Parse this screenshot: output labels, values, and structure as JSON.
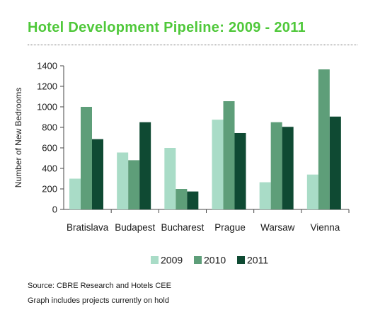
{
  "title": "Hotel Development Pipeline: 2009 - 2011",
  "chart_data": {
    "type": "bar",
    "categories": [
      "Bratislava",
      "Budapest",
      "Bucharest",
      "Prague",
      "Warsaw",
      "Vienna"
    ],
    "series": [
      {
        "name": "2009",
        "values": [
          300,
          555,
          600,
          875,
          265,
          340
        ],
        "color": "#a9dcc7"
      },
      {
        "name": "2010",
        "values": [
          1000,
          480,
          200,
          1055,
          850,
          1365
        ],
        "color": "#5e9e79"
      },
      {
        "name": "2011",
        "values": [
          685,
          850,
          175,
          745,
          805,
          905
        ],
        "color": "#0f4a33"
      }
    ],
    "xlabel": "",
    "ylabel": "Number of New Bedrooms",
    "ylim": [
      0,
      1400
    ],
    "yticks": [
      0,
      200,
      400,
      600,
      800,
      1000,
      1200,
      1400
    ],
    "grid": false,
    "legend": "bottom"
  },
  "notes": {
    "source": "Source: CBRE Research and Hotels CEE",
    "hold": "Graph includes projects currently on hold"
  }
}
